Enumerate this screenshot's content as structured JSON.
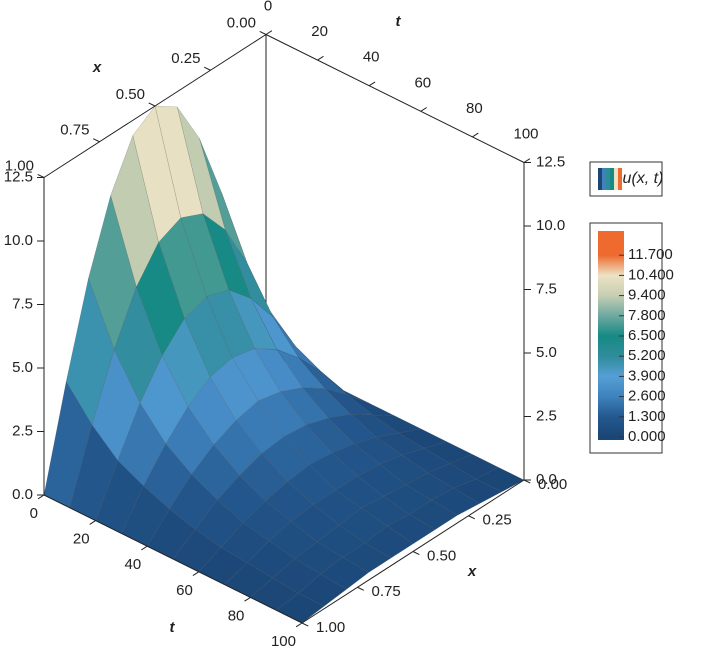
{
  "chart_data": {
    "type": "surface",
    "x_label": "x",
    "t_label": "t",
    "legend": "u(x, t)",
    "x": [
      0,
      0.1,
      0.2,
      0.3,
      0.4,
      0.5,
      0.6,
      0.7,
      0.8,
      0.9,
      1
    ],
    "t": [
      0,
      10,
      20,
      30,
      40,
      50,
      60,
      70,
      80,
      90,
      100
    ],
    "z": [
      [
        0,
        3.9,
        7.4,
        10.1,
        11.9,
        12.5,
        11.9,
        10.1,
        7.4,
        3.9,
        0
      ],
      [
        0,
        2.7,
        5.1,
        7.0,
        8.2,
        8.6,
        8.2,
        7.0,
        5.1,
        2.7,
        0
      ],
      [
        0,
        1.8,
        3.5,
        4.8,
        5.7,
        6.0,
        5.7,
        4.8,
        3.5,
        1.8,
        0
      ],
      [
        0,
        1.3,
        2.4,
        3.3,
        3.9,
        4.1,
        3.9,
        3.3,
        2.4,
        1.3,
        0
      ],
      [
        0,
        0.9,
        1.7,
        2.3,
        2.7,
        2.9,
        2.7,
        2.3,
        1.7,
        0.9,
        0
      ],
      [
        0,
        0.6,
        1.2,
        1.6,
        1.9,
        2.0,
        1.9,
        1.6,
        1.2,
        0.6,
        0
      ],
      [
        0,
        0.4,
        0.8,
        1.1,
        1.3,
        1.4,
        1.3,
        1.1,
        0.8,
        0.4,
        0
      ],
      [
        0,
        0.3,
        0.6,
        0.8,
        0.9,
        0.9,
        0.9,
        0.8,
        0.6,
        0.3,
        0
      ],
      [
        0,
        0.2,
        0.4,
        0.5,
        0.6,
        0.7,
        0.6,
        0.5,
        0.4,
        0.2,
        0
      ],
      [
        0,
        0.1,
        0.3,
        0.4,
        0.4,
        0.5,
        0.4,
        0.4,
        0.3,
        0.1,
        0
      ],
      [
        0,
        0.1,
        0.2,
        0.3,
        0.3,
        0.3,
        0.3,
        0.3,
        0.2,
        0.1,
        0
      ]
    ],
    "xlim": [
      0,
      1
    ],
    "tlim": [
      0,
      100
    ],
    "zlim": [
      0,
      12.5
    ],
    "xticks": [
      {
        "value": 0,
        "label": "0.00"
      },
      {
        "value": 0.25,
        "label": "0.25"
      },
      {
        "value": 0.5,
        "label": "0.50"
      },
      {
        "value": 0.75,
        "label": "0.75"
      },
      {
        "value": 1,
        "label": "1.00"
      }
    ],
    "tticks": [
      0,
      20,
      40,
      60,
      80,
      100
    ],
    "zticks": [
      {
        "value": 0,
        "label": "0.0"
      },
      {
        "value": 2.5,
        "label": "2.5"
      },
      {
        "value": 5,
        "label": "5.0"
      },
      {
        "value": 7.5,
        "label": "7.5"
      },
      {
        "value": 10,
        "label": "10.0"
      },
      {
        "value": 12.5,
        "label": "12.5"
      }
    ],
    "colorbar": {
      "ticks": [
        {
          "value": 0,
          "label": "0.000"
        },
        {
          "value": 1.3,
          "label": "1.300"
        },
        {
          "value": 2.6,
          "label": "2.600"
        },
        {
          "value": 3.9,
          "label": "3.900"
        },
        {
          "value": 5.2,
          "label": "5.200"
        },
        {
          "value": 6.5,
          "label": "6.500"
        },
        {
          "value": 7.8,
          "label": "7.800"
        },
        {
          "value": 9.4,
          "label": "9.400"
        },
        {
          "value": 10.4,
          "label": "10.400"
        },
        {
          "value": 11.7,
          "label": "11.700"
        }
      ],
      "colors": [
        "#1b4676",
        "#24588e",
        "#3f82bd",
        "#559fd6",
        "#2f8c9a",
        "#178a84",
        "#6ea9a1",
        "#c6ceb2",
        "#ece2c5",
        "#ee6a2e"
      ]
    }
  }
}
